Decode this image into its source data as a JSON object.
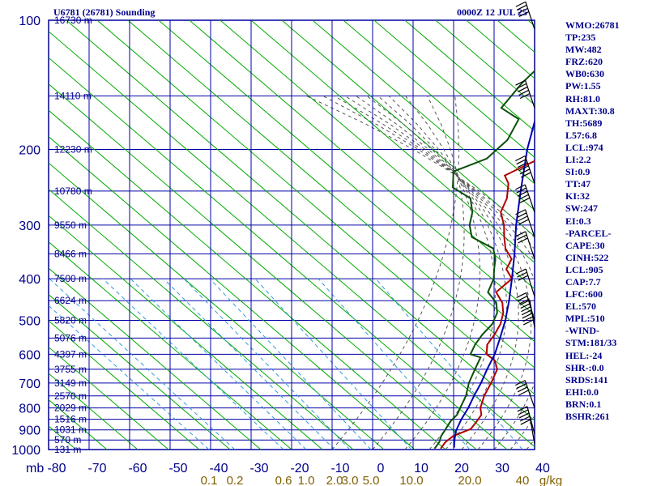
{
  "header": {
    "station_title": "U6781 (26781) Sounding",
    "time_title": "0000Z 12 JUL 25"
  },
  "indices": [
    "WMO:26781",
    "TP:235",
    "MW:482",
    "FRZ:620",
    "WB0:630",
    "PW:1.55",
    "RH:81.0",
    "MAXT:30.8",
    "TH:5689",
    "L57:6.8",
    "LCL:974",
    "LI:2.2",
    "SI:0.9",
    "TT:47",
    "KI:32",
    "SW:247",
    "EI:0.3",
    "-PARCEL-",
    "CAPE:30",
    "CINH:522",
    "LCL:905",
    "CAP:7.7",
    "LFC:600",
    "EL:570",
    "MPL:510",
    "-WIND-",
    "STM:181/33",
    "HEL:-24",
    "SHR-:0.0",
    "SRDS:141",
    "EHI:0.0",
    "BRN:0.1",
    "BSHR:261"
  ],
  "colors": {
    "frame": "#00008b",
    "grid": "#0000aa",
    "dry_adiabat": "#00aa00",
    "moist_adiabat": "#555555",
    "mixing_ratio": "#3399dd",
    "temperature": "#b00000",
    "dewpoint": "#0a4f0a",
    "parcel": "#0000b0",
    "wind": "#000000"
  },
  "chart_data": {
    "type": "line",
    "diagram": "skew-T log-P",
    "x_unit_label": "mb",
    "pressure_levels": [
      100,
      200,
      300,
      400,
      500,
      600,
      700,
      800,
      900,
      1000
    ],
    "height_labels": [
      {
        "p": 100,
        "label": "16730 m"
      },
      {
        "p": 150,
        "label": "14110 m"
      },
      {
        "p": 200,
        "label": "12230 m"
      },
      {
        "p": 250,
        "label": "10780 m"
      },
      {
        "p": 300,
        "label": "9550 m"
      },
      {
        "p": 350,
        "label": "8466 m"
      },
      {
        "p": 400,
        "label": "7500 m"
      },
      {
        "p": 450,
        "label": "6624 m"
      },
      {
        "p": 500,
        "label": "5820 m"
      },
      {
        "p": 550,
        "label": "5076 m"
      },
      {
        "p": 600,
        "label": "4397 m"
      },
      {
        "p": 650,
        "label": "3755 m"
      },
      {
        "p": 700,
        "label": "3149 m"
      },
      {
        "p": 750,
        "label": "2570 m"
      },
      {
        "p": 800,
        "label": "2029 m"
      },
      {
        "p": 850,
        "label": "1516 m"
      },
      {
        "p": 900,
        "label": "1031 m"
      },
      {
        "p": 950,
        "label": "570 m"
      },
      {
        "p": 1000,
        "label": "131 m"
      }
    ],
    "temperature_ticks": [
      "-80",
      "-70",
      "-60",
      "-50",
      "-40",
      "-30",
      "-20",
      "-10",
      "0",
      "10",
      "20",
      "30",
      "40"
    ],
    "mixing_ratio_labels": [
      {
        "w": 0.1,
        "label": "0.1"
      },
      {
        "w": 0.2,
        "label": "0.2"
      },
      {
        "w": 0.6,
        "label": "0.6"
      },
      {
        "w": 1.0,
        "label": "1.0"
      },
      {
        "w": 2.0,
        "label": "2.0"
      },
      {
        "w": 3.0,
        "label": "3.0"
      },
      {
        "w": 5.0,
        "label": "5.0"
      },
      {
        "w": 10.0,
        "label": "10.0"
      },
      {
        "w": 20.0,
        "label": "20.0"
      },
      {
        "w": 40.0,
        "label": "40"
      }
    ],
    "mixing_ratio_unit": "g/kg",
    "pressure_range": [
      1000,
      100
    ],
    "temperature_range_at_1000": [
      -80,
      40
    ],
    "series": [
      {
        "key": "temperature",
        "values": [
          [
            995,
            16.5
          ],
          [
            960,
            15.5
          ],
          [
            930,
            15.5
          ],
          [
            895,
            17.5
          ],
          [
            860,
            16.5
          ],
          [
            830,
            15.5
          ],
          [
            800,
            13.0
          ],
          [
            750,
            10.0
          ],
          [
            700,
            7.5
          ],
          [
            650,
            4.5
          ],
          [
            620,
            1.0
          ],
          [
            600,
            -3.0
          ],
          [
            570,
            -6.0
          ],
          [
            540,
            -7.5
          ],
          [
            510,
            -9.5
          ],
          [
            480,
            -12.5
          ],
          [
            455,
            -16.0
          ],
          [
            430,
            -21.0
          ],
          [
            400,
            -21.5
          ],
          [
            380,
            -26.0
          ],
          [
            360,
            -28.0
          ],
          [
            340,
            -33.0
          ],
          [
            320,
            -37.0
          ],
          [
            300,
            -41.0
          ],
          [
            280,
            -46.0
          ],
          [
            260,
            -49.0
          ],
          [
            240,
            -53.5
          ],
          [
            230,
            -57.0
          ],
          [
            210,
            -54.0
          ],
          [
            190,
            -51.5
          ],
          [
            170,
            -51.0
          ],
          [
            155,
            -55.0
          ],
          [
            140,
            -57.0
          ],
          [
            125,
            -57.5
          ],
          [
            110,
            -59.0
          ],
          [
            100,
            -60.0
          ]
        ]
      },
      {
        "key": "dewpoint",
        "values": [
          [
            995,
            15.0
          ],
          [
            960,
            14.0
          ],
          [
            930,
            12.5
          ],
          [
            900,
            11.5
          ],
          [
            860,
            10.0
          ],
          [
            830,
            9.5
          ],
          [
            800,
            8.0
          ],
          [
            750,
            5.5
          ],
          [
            700,
            2.0
          ],
          [
            650,
            -1.0
          ],
          [
            610,
            -3.5
          ],
          [
            600,
            -7.0
          ],
          [
            570,
            -9.0
          ],
          [
            540,
            -10.5
          ],
          [
            510,
            -11.5
          ],
          [
            480,
            -14.0
          ],
          [
            455,
            -17.5
          ],
          [
            430,
            -23.0
          ],
          [
            400,
            -26.0
          ],
          [
            380,
            -29.0
          ],
          [
            360,
            -32.0
          ],
          [
            340,
            -36.0
          ],
          [
            320,
            -45.0
          ],
          [
            300,
            -49.5
          ],
          [
            280,
            -53.0
          ],
          [
            260,
            -58.0
          ],
          [
            245,
            -66.0
          ],
          [
            225,
            -71.0
          ],
          [
            210,
            -67.0
          ],
          [
            190,
            -68.0
          ],
          [
            170,
            -72.0
          ],
          [
            160,
            -80.0
          ],
          [
            140,
            -83.0
          ],
          [
            120,
            -85.0
          ],
          [
            100,
            -88.0
          ]
        ]
      },
      {
        "key": "parcel",
        "values": [
          [
            990,
            19.5
          ],
          [
            940,
            16.5
          ],
          [
            905,
            14.5
          ],
          [
            850,
            12.0
          ],
          [
            800,
            10.0
          ],
          [
            750,
            7.5
          ],
          [
            700,
            5.0
          ],
          [
            650,
            2.0
          ],
          [
            600,
            -1.0
          ],
          [
            550,
            -5.0
          ],
          [
            500,
            -9.5
          ],
          [
            450,
            -15.0
          ],
          [
            400,
            -21.5
          ],
          [
            350,
            -29.0
          ],
          [
            300,
            -38.0
          ],
          [
            250,
            -48.0
          ],
          [
            200,
            -60.0
          ],
          [
            150,
            -74.0
          ]
        ]
      }
    ],
    "wind_barbs": [
      {
        "p": 105,
        "dir": 290,
        "spd": 50
      },
      {
        "p": 160,
        "dir": 285,
        "spd": 60
      },
      {
        "p": 240,
        "dir": 280,
        "spd": 70
      },
      {
        "p": 280,
        "dir": 280,
        "spd": 55
      },
      {
        "p": 320,
        "dir": 285,
        "spd": 45
      },
      {
        "p": 360,
        "dir": 290,
        "spd": 40
      },
      {
        "p": 440,
        "dir": 295,
        "spd": 35
      },
      {
        "p": 500,
        "dir": 300,
        "spd": 30
      },
      {
        "p": 520,
        "dir": 330,
        "spd": 80
      },
      {
        "p": 800,
        "dir": 260,
        "spd": 50
      },
      {
        "p": 920,
        "dir": 230,
        "spd": 40
      },
      {
        "p": 970,
        "dir": 210,
        "spd": 25
      }
    ]
  }
}
